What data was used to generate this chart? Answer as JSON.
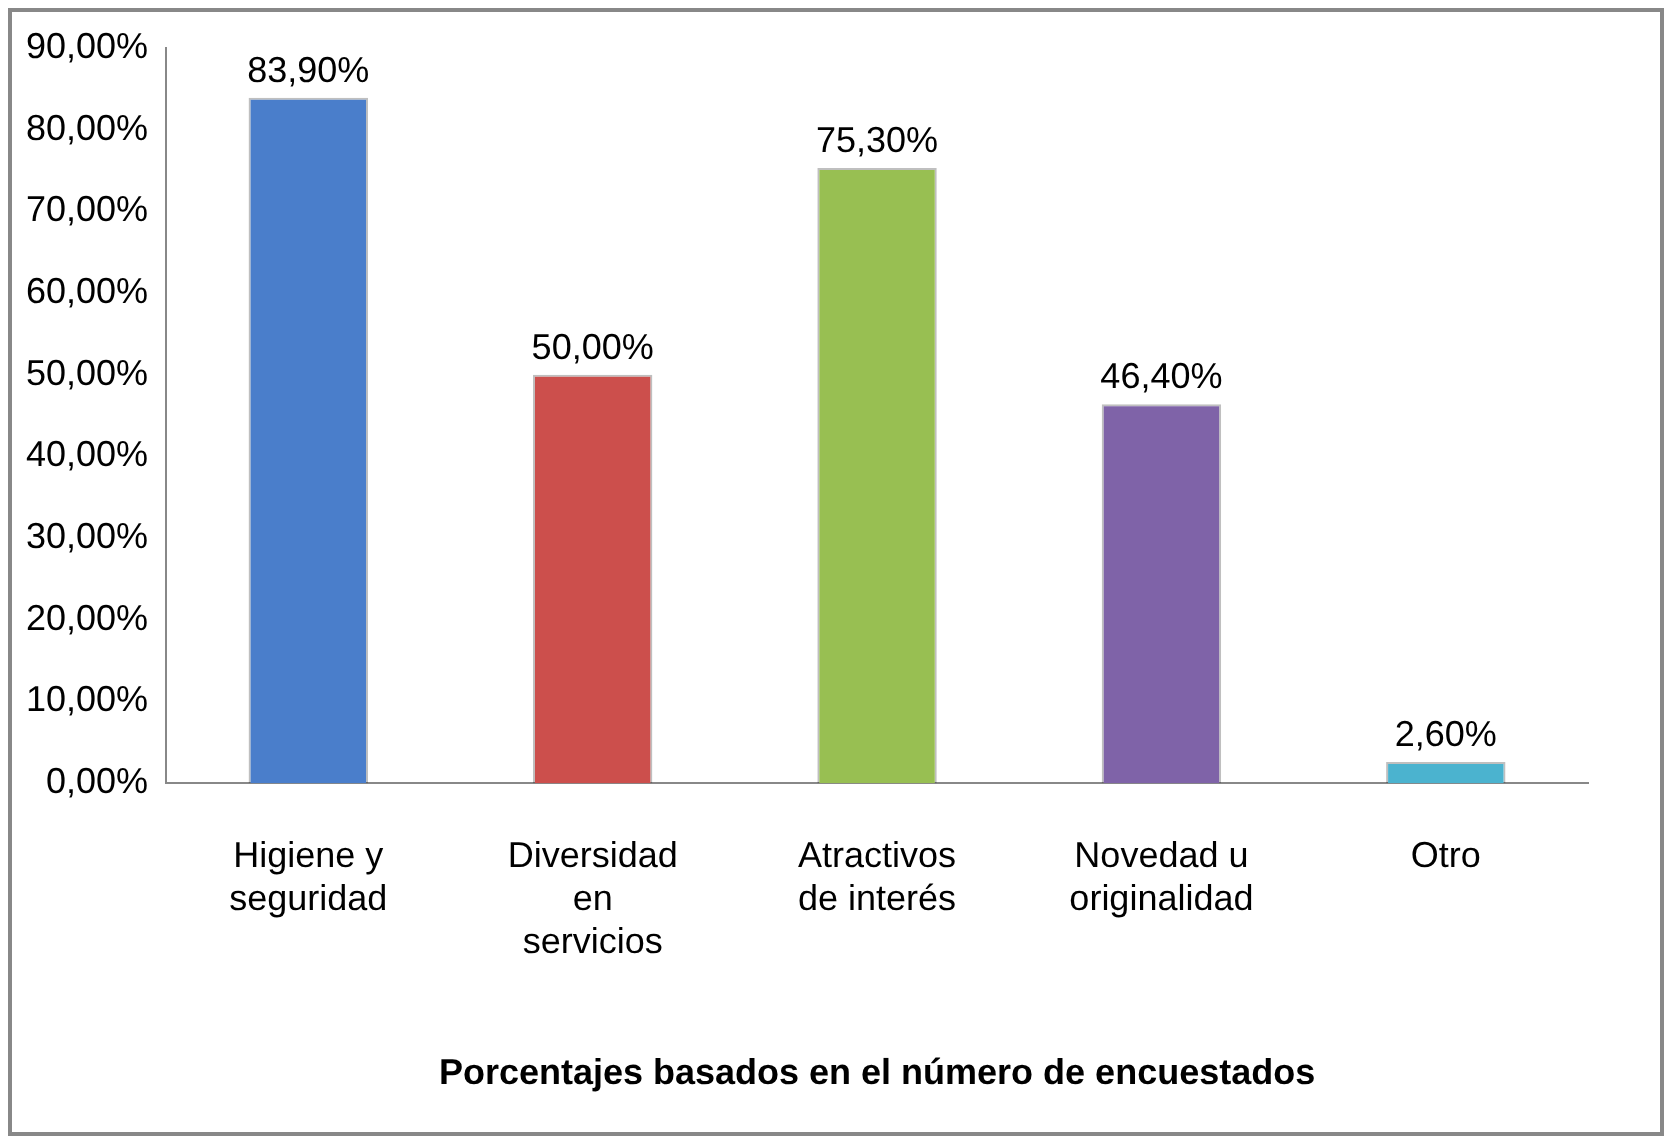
{
  "chart_data": {
    "type": "bar",
    "xlabel": "Porcentajes basados en el número de encuestados",
    "categories": [
      "Higiene y seguridad",
      "Diversidad en servicios",
      "Atractivos de interés",
      "Novedad u originalidad",
      "Otro"
    ],
    "values": [
      83.9,
      50,
      75.3,
      46.4,
      2.6
    ],
    "colors": [
      "#4a7ecb",
      "#cc4f4c",
      "#98bf52",
      "#7f63a8",
      "#4bb3cf"
    ],
    "value_labels": [
      "83,90%",
      "50,00%",
      "75,30%",
      "46,40%",
      "2,60%"
    ],
    "ylim": [
      0,
      90
    ],
    "yticks": [
      {
        "value": 0,
        "label": "0,00%"
      },
      {
        "value": 10,
        "label": "10,00%"
      },
      {
        "value": 20,
        "label": "20,00%"
      },
      {
        "value": 30,
        "label": "30,00%"
      },
      {
        "value": 40,
        "label": "40,00%"
      },
      {
        "value": 50,
        "label": "50,00%"
      },
      {
        "value": 60,
        "label": "60,00%"
      },
      {
        "value": 70,
        "label": "70,00%"
      },
      {
        "value": 80,
        "label": "80,00%"
      },
      {
        "value": 90,
        "label": "90,00%"
      }
    ],
    "grid": false,
    "legend": false
  }
}
